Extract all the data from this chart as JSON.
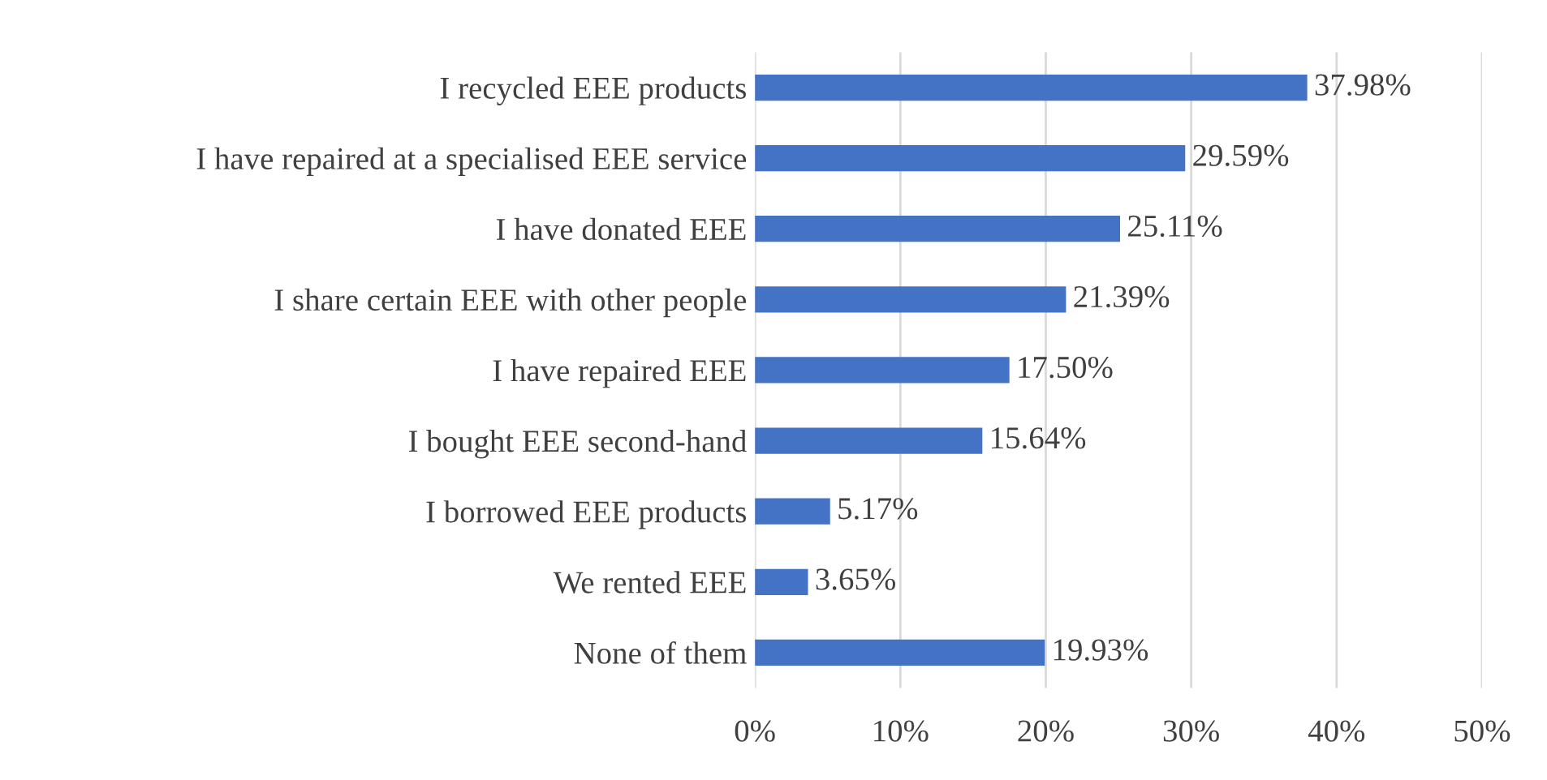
{
  "chart_data": {
    "type": "bar",
    "orientation": "horizontal",
    "categories": [
      "I recycled EEE products",
      "I have repaired at a specialised EEE service",
      "I have donated EEE",
      "I share certain EEE with other people",
      "I have repaired EEE",
      "I bought EEE second-hand",
      "I borrowed EEE products",
      "We rented EEE",
      "None of them"
    ],
    "values": [
      37.98,
      29.59,
      25.11,
      21.39,
      17.5,
      15.64,
      5.17,
      3.65,
      19.93
    ],
    "value_labels": [
      "37.98%",
      "29.59%",
      "25.11%",
      "21.39%",
      "17.50%",
      "15.64%",
      "5.17%",
      "3.65%",
      "19.93%"
    ],
    "color": "#4472c4",
    "xlim": [
      0,
      50
    ],
    "xticks": [
      {
        "value": 0,
        "label": "0%"
      },
      {
        "value": 10,
        "label": "10%"
      },
      {
        "value": 20,
        "label": "20%"
      },
      {
        "value": 30,
        "label": "30%"
      },
      {
        "value": 40,
        "label": "40%"
      },
      {
        "value": 50,
        "label": "50%"
      }
    ],
    "grid": "x"
  }
}
